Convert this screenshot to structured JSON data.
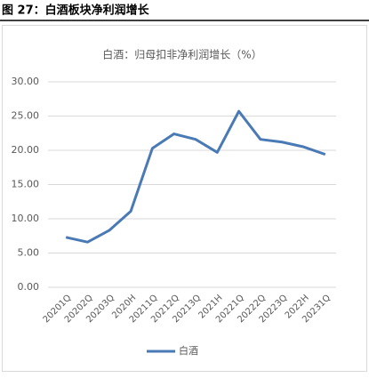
{
  "header": {
    "title": "图 27：白酒板块净利润增长"
  },
  "chart_data": {
    "type": "line",
    "title": "白酒：归母扣非净利润增长（%）",
    "categories": [
      "20201Q",
      "20202Q",
      "20203Q",
      "2020H",
      "20211Q",
      "20212Q",
      "20213Q",
      "2021H",
      "20221Q",
      "20222Q",
      "20223Q",
      "2022H",
      "20231Q"
    ],
    "series": [
      {
        "name": "白酒",
        "color": "#4a7ab5",
        "values": [
          7.3,
          6.6,
          8.3,
          11.1,
          20.3,
          22.4,
          21.6,
          19.7,
          25.7,
          21.6,
          21.2,
          20.5,
          19.4
        ]
      }
    ],
    "ylim": [
      0,
      30
    ],
    "yticks": [
      {
        "value": 0,
        "label": "0.00"
      },
      {
        "value": 5,
        "label": "5.00"
      },
      {
        "value": 10,
        "label": "10.00"
      },
      {
        "value": 15,
        "label": "15.00"
      },
      {
        "value": 20,
        "label": "20.00"
      },
      {
        "value": 25,
        "label": "25.00"
      },
      {
        "value": 30,
        "label": "30.00"
      }
    ],
    "grid": true,
    "legend": "bottom"
  }
}
